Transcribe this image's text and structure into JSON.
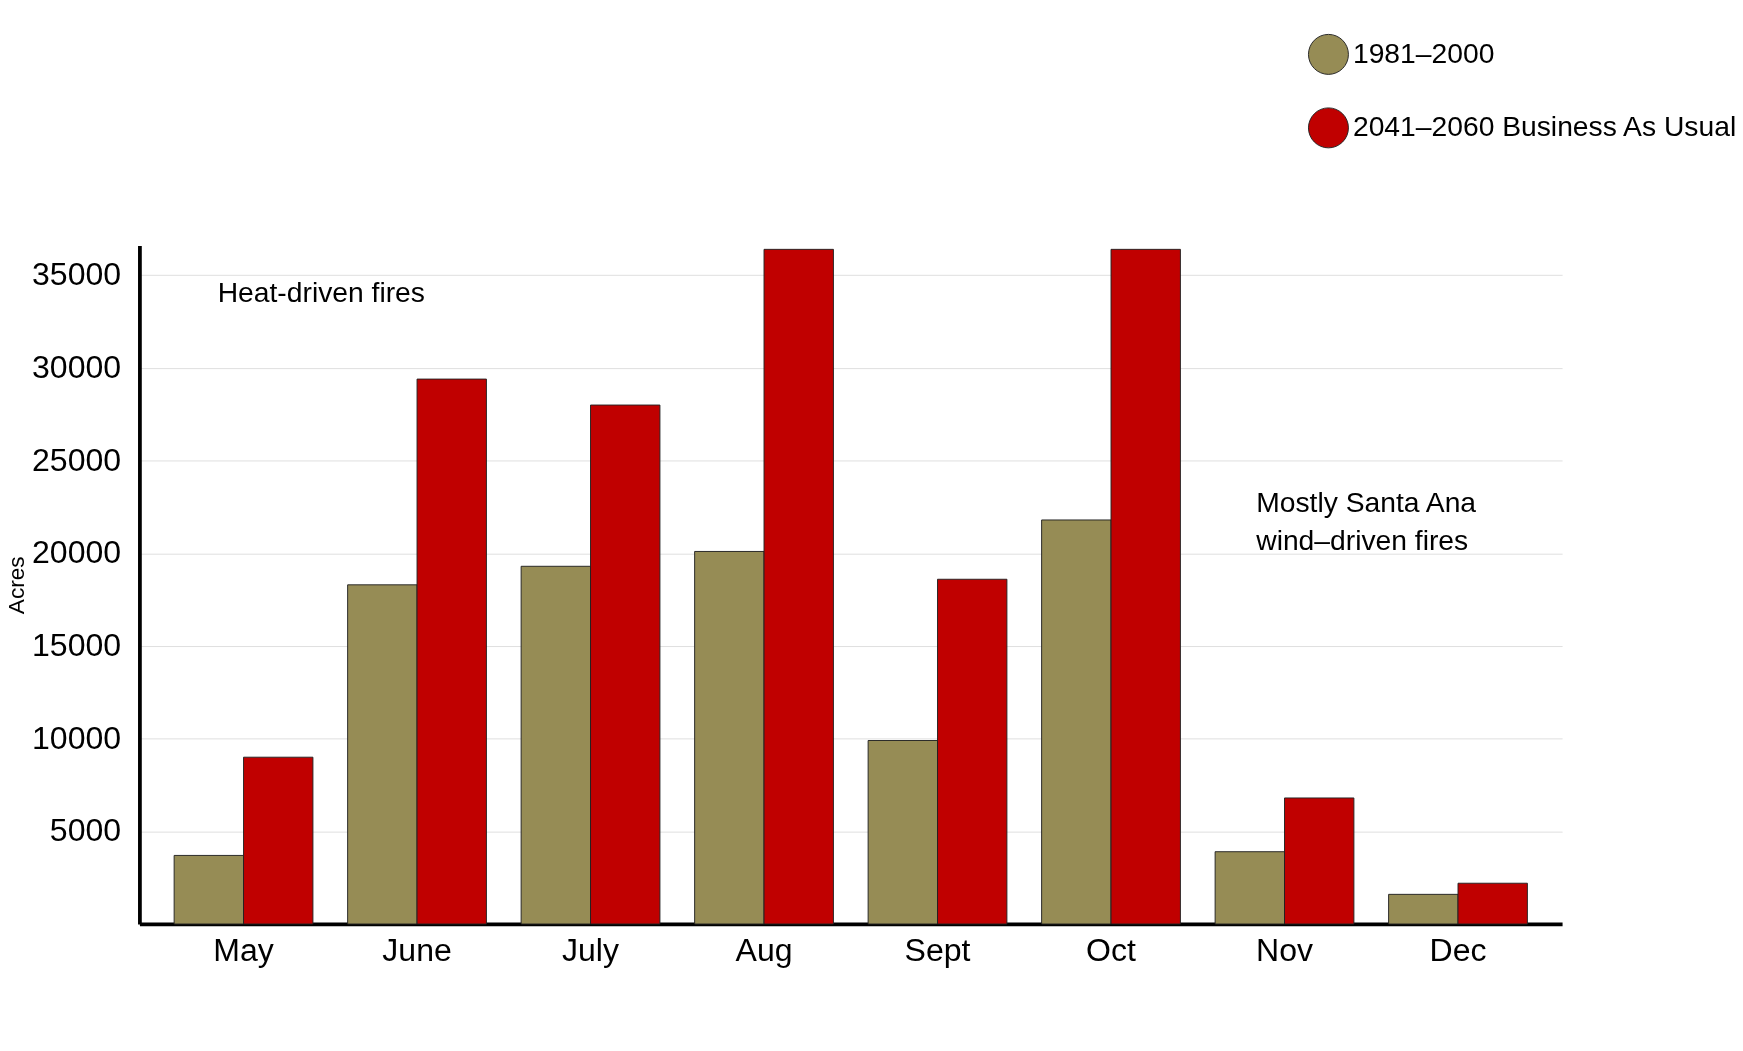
{
  "chart_data": {
    "type": "bar",
    "ylabel": "Acres",
    "categories": [
      "May",
      "June",
      "July",
      "Aug",
      "Sept",
      "Oct",
      "Nov",
      "Dec"
    ],
    "series": [
      {
        "name": "1981–2000",
        "color": "#968c55",
        "values": [
          3700,
          18300,
          19300,
          20100,
          9900,
          21800,
          3900,
          1600
        ]
      },
      {
        "name": "2041–2060 Business As Usual",
        "color": "#c00000",
        "values": [
          9000,
          29400,
          28000,
          36400,
          18600,
          36400,
          6800,
          2200
        ]
      }
    ],
    "ylim": [
      0,
      36600
    ],
    "yticks": [
      5000,
      10000,
      15000,
      20000,
      25000,
      30000,
      35000
    ],
    "grid": "y",
    "legend": "top right",
    "annotations": [
      "Heat-driven fires",
      "Mostly Santa Ana\nwind–driven fires"
    ]
  }
}
